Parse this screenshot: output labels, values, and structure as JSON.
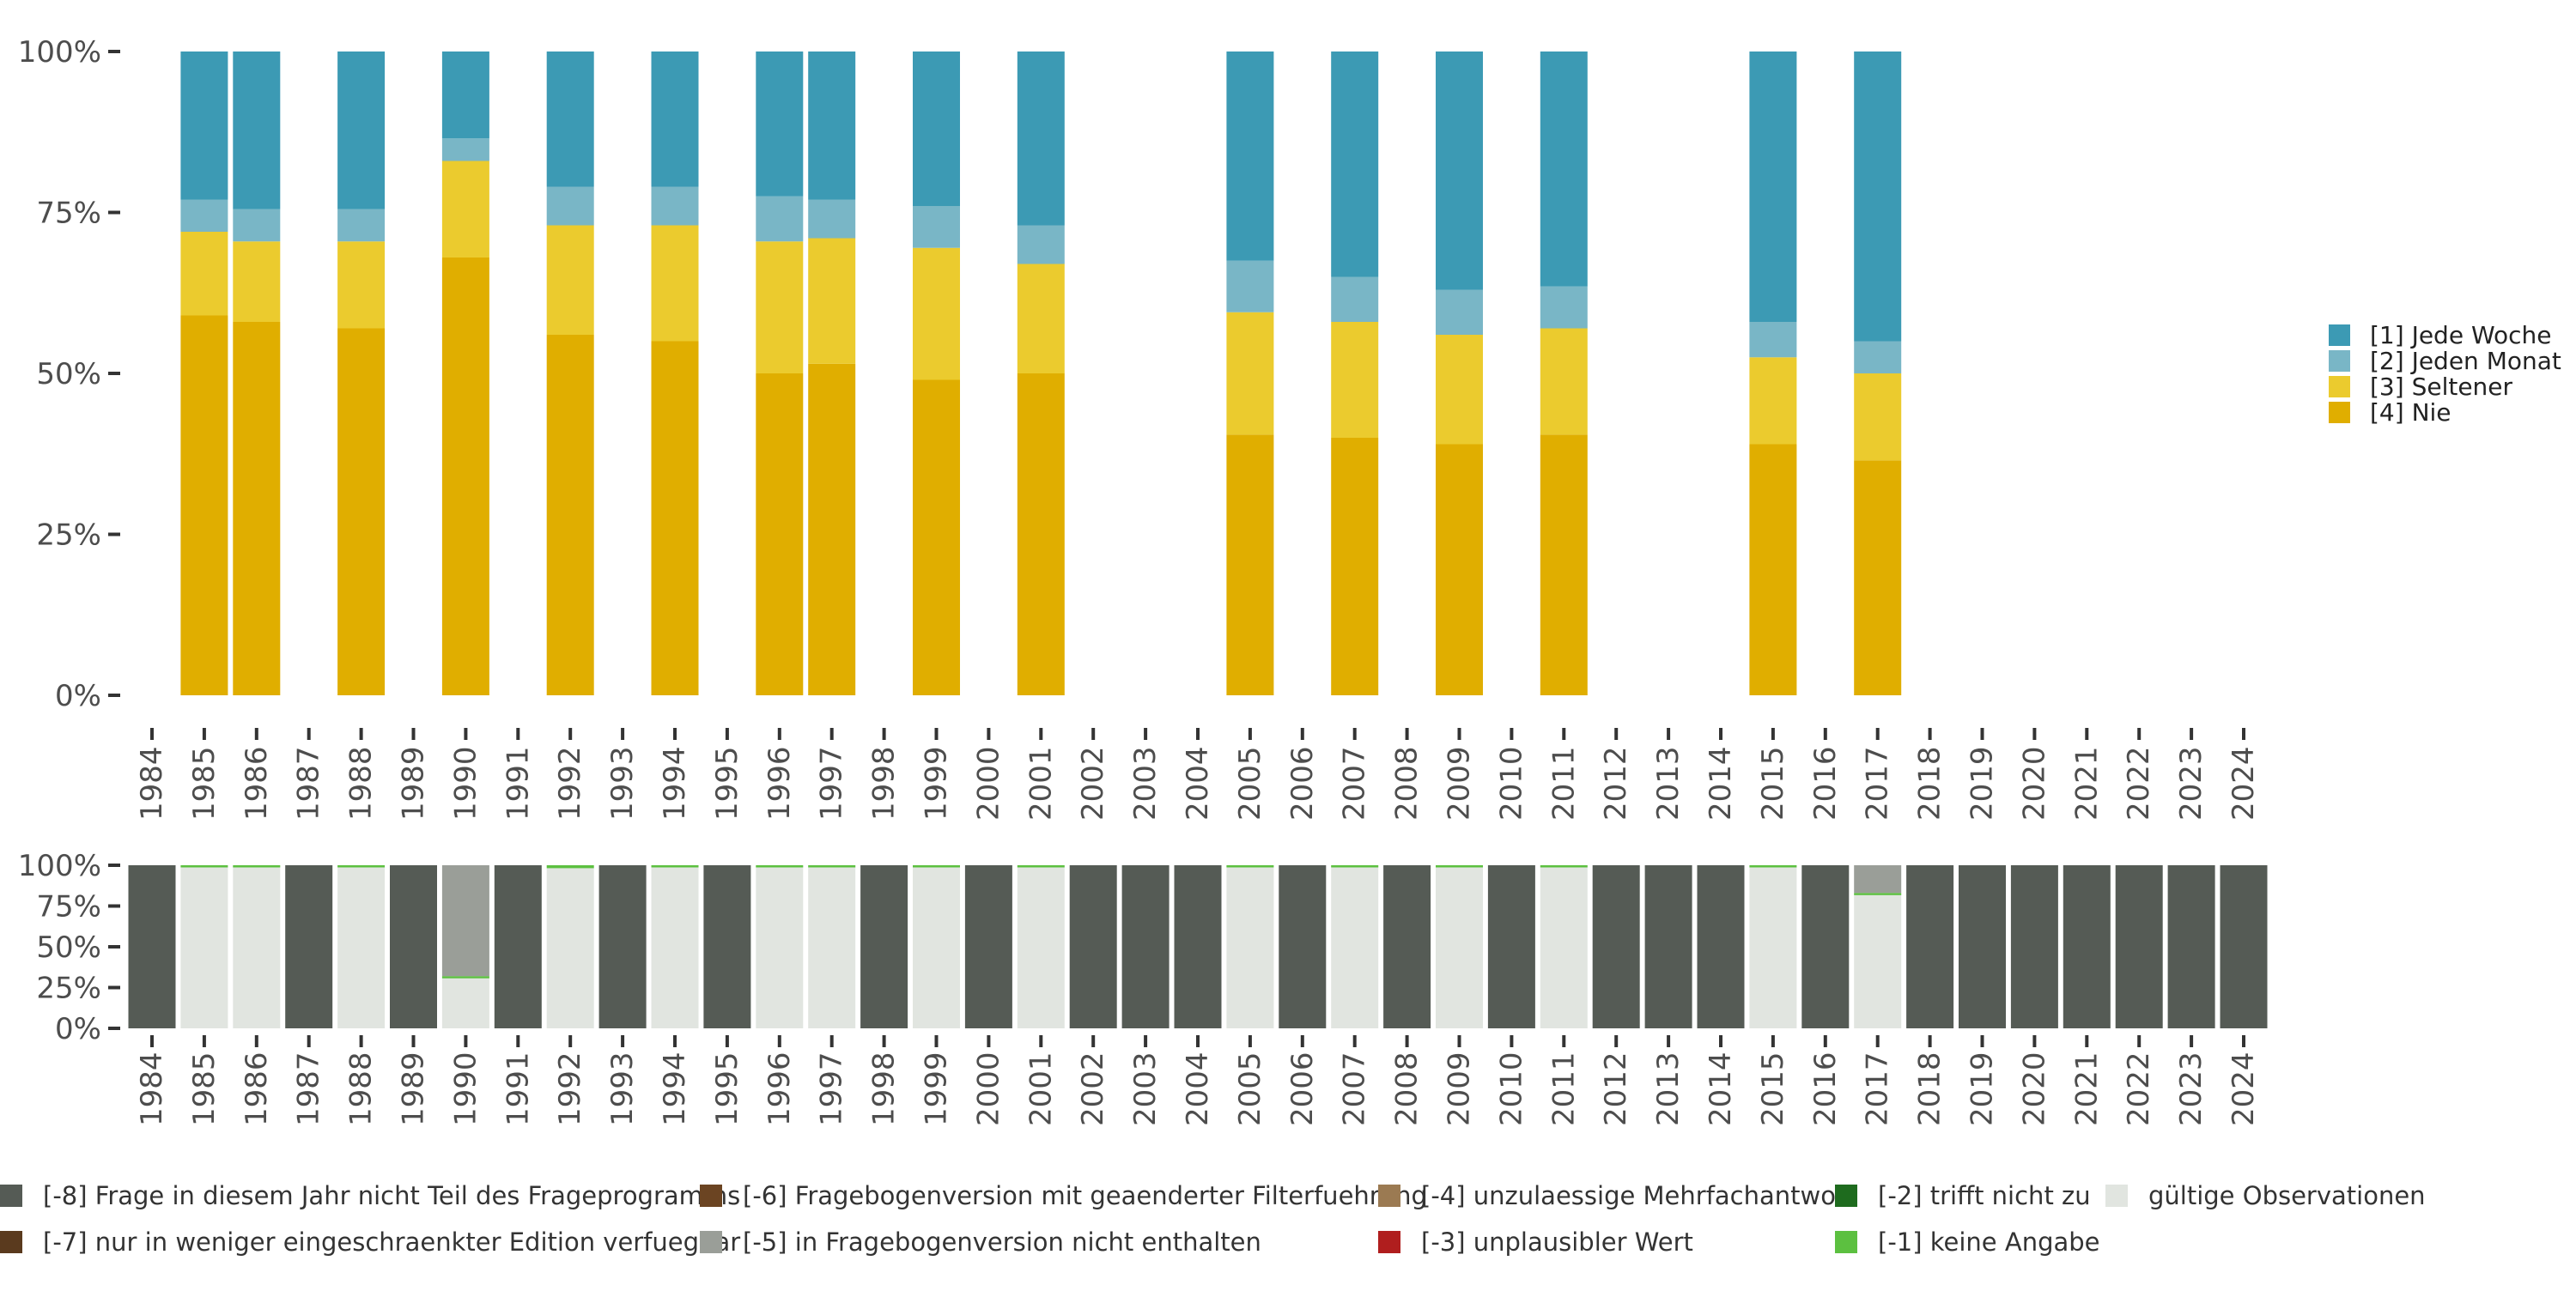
{
  "chart_data": [
    {
      "type": "bar",
      "stacked": true,
      "percent_scale": true,
      "x": [
        "1984",
        "1985",
        "1986",
        "1987",
        "1988",
        "1989",
        "1990",
        "1991",
        "1992",
        "1993",
        "1994",
        "1995",
        "1996",
        "1997",
        "1998",
        "1999",
        "2000",
        "2001",
        "2002",
        "2003",
        "2004",
        "2005",
        "2006",
        "2007",
        "2008",
        "2009",
        "2010",
        "2011",
        "2012",
        "2013",
        "2014",
        "2015",
        "2016",
        "2017",
        "2018",
        "2019",
        "2020",
        "2021",
        "2022",
        "2023",
        "2024"
      ],
      "ylim": [
        0,
        100
      ],
      "y_ticks": [
        "0%",
        "25%",
        "50%",
        "75%",
        "100%"
      ],
      "legend_position": "right",
      "series": [
        {
          "name": "[4] Nie",
          "color": "#E0AE00",
          "values": [
            null,
            59,
            58,
            null,
            57,
            null,
            68,
            null,
            56,
            null,
            55,
            null,
            50,
            51.5,
            null,
            49,
            null,
            50,
            null,
            null,
            null,
            40.5,
            null,
            40,
            null,
            39,
            null,
            40.5,
            null,
            null,
            null,
            39,
            null,
            36.5,
            null,
            null,
            null,
            null,
            null,
            null,
            null
          ]
        },
        {
          "name": "[3] Seltener",
          "color": "#EBCB2E",
          "values": [
            null,
            13,
            12.5,
            null,
            13.5,
            null,
            15,
            null,
            17,
            null,
            18,
            null,
            20.5,
            19.5,
            null,
            20.5,
            null,
            17,
            null,
            null,
            null,
            19,
            null,
            18,
            null,
            17,
            null,
            16.5,
            null,
            null,
            null,
            13.5,
            null,
            13.5,
            null,
            null,
            null,
            null,
            null,
            null,
            null
          ]
        },
        {
          "name": "[2] Jeden Monat",
          "color": "#79B6C6",
          "values": [
            null,
            5,
            5,
            null,
            5,
            null,
            3.5,
            null,
            6,
            null,
            6,
            null,
            7,
            6,
            null,
            6.5,
            null,
            6,
            null,
            null,
            null,
            8,
            null,
            7,
            null,
            7,
            null,
            6.5,
            null,
            null,
            null,
            5.5,
            null,
            5,
            null,
            null,
            null,
            null,
            null,
            null,
            null
          ]
        },
        {
          "name": "[1] Jede Woche",
          "color": "#3C9AB4",
          "values": [
            null,
            23,
            24.5,
            null,
            24.5,
            null,
            13.5,
            null,
            21,
            null,
            21,
            null,
            22.5,
            23,
            null,
            24,
            null,
            27,
            null,
            null,
            null,
            32.5,
            null,
            35,
            null,
            37,
            null,
            36.5,
            null,
            null,
            null,
            42,
            null,
            45,
            null,
            null,
            null,
            null,
            null,
            null,
            null
          ]
        }
      ]
    },
    {
      "type": "bar",
      "stacked": true,
      "percent_scale": true,
      "x": [
        "1984",
        "1985",
        "1986",
        "1987",
        "1988",
        "1989",
        "1990",
        "1991",
        "1992",
        "1993",
        "1994",
        "1995",
        "1996",
        "1997",
        "1998",
        "1999",
        "2000",
        "2001",
        "2002",
        "2003",
        "2004",
        "2005",
        "2006",
        "2007",
        "2008",
        "2009",
        "2010",
        "2011",
        "2012",
        "2013",
        "2014",
        "2015",
        "2016",
        "2017",
        "2018",
        "2019",
        "2020",
        "2021",
        "2022",
        "2023",
        "2024"
      ],
      "ylim": [
        0,
        100
      ],
      "y_ticks": [
        "0%",
        "25%",
        "50%",
        "75%",
        "100%"
      ],
      "legend_position": "bottom",
      "year_status": [
        "not_in_program",
        "valid",
        "valid",
        "not_in_program",
        "valid",
        "not_in_program",
        "valid",
        "not_in_program",
        "valid",
        "not_in_program",
        "valid",
        "not_in_program",
        "valid",
        "valid",
        "not_in_program",
        "valid",
        "not_in_program",
        "valid",
        "not_in_program",
        "not_in_program",
        "not_in_program",
        "valid",
        "not_in_program",
        "valid",
        "not_in_program",
        "valid",
        "not_in_program",
        "valid",
        "not_in_program",
        "not_in_program",
        "not_in_program",
        "valid",
        "not_in_program",
        "valid",
        "not_in_program",
        "not_in_program",
        "not_in_program",
        "not_in_program",
        "not_in_program",
        "not_in_program",
        "not_in_program"
      ],
      "missing_percent_minus5": [
        0,
        0,
        0,
        0,
        0,
        0,
        68,
        0,
        0,
        0,
        0,
        0,
        0,
        0,
        0,
        0,
        0,
        0,
        0,
        0,
        0,
        0,
        0,
        0,
        0,
        0,
        0,
        0,
        0,
        0,
        0,
        0,
        0,
        17,
        0,
        0,
        0,
        0,
        0,
        0,
        0
      ],
      "missing_percent_minus1": [
        0,
        0.8,
        0.8,
        0,
        0.8,
        0,
        1.2,
        0,
        1.8,
        0,
        1.2,
        0,
        0.6,
        0.6,
        0,
        0.6,
        0,
        0.6,
        0,
        0,
        0,
        0.4,
        0,
        0.4,
        0,
        0.4,
        0,
        0.4,
        0,
        0,
        0,
        0.4,
        0,
        0.6,
        0,
        0,
        0,
        0,
        0,
        0,
        0
      ],
      "legend": [
        {
          "label": "[-8] Frage in diesem Jahr nicht Teil des Frageprogramms",
          "color": "#555B55"
        },
        {
          "label": "[-7] nur in weniger eingeschraenkter Edition verfuegbar",
          "color": "#5A3A1E"
        },
        {
          "label": "[-6] Fragebogenversion mit geaenderter Filterfuehrung",
          "color": "#6B4422"
        },
        {
          "label": "[-5] in Fragebogenversion nicht enthalten",
          "color": "#9A9E98"
        },
        {
          "label": "[-4] unzulaessige Mehrfachantwort",
          "color": "#9B7A52"
        },
        {
          "label": "[-3] unplausibler Wert",
          "color": "#B01E1E"
        },
        {
          "label": "[-2] trifft nicht zu",
          "color": "#1E6B1E"
        },
        {
          "label": "[-1] keine Angabe",
          "color": "#5CC040"
        },
        {
          "label": "gültige Observationen",
          "color": "#E1E5E0"
        }
      ]
    }
  ]
}
